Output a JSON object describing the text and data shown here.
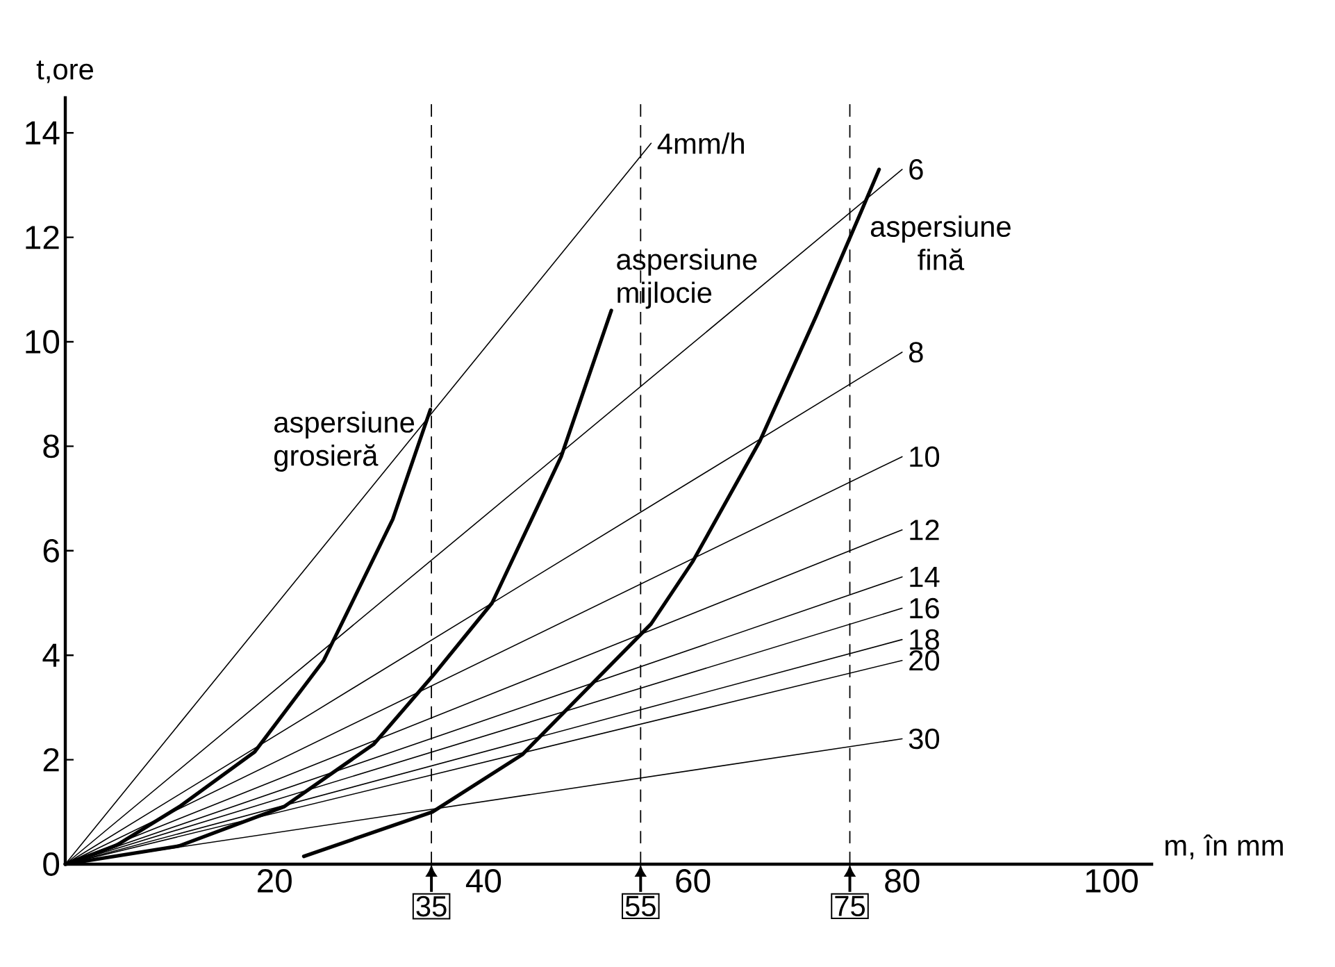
{
  "chart_data": {
    "type": "line",
    "xlabel": "m, în mm",
    "ylabel": "t,ore",
    "xlim": [
      0,
      104
    ],
    "ylim": [
      0,
      14.7
    ],
    "xticks": [
      20,
      40,
      60,
      80,
      100
    ],
    "yticks": [
      0,
      2,
      4,
      6,
      8,
      10,
      12,
      14
    ],
    "grid": false,
    "marker": "none",
    "line_style": "solid",
    "series": [
      {
        "name": "4mm/h",
        "color": "#000000",
        "x": [
          0,
          56
        ],
        "values": [
          0,
          13.8
        ]
      },
      {
        "name": "6",
        "color": "#000000",
        "x": [
          0,
          80
        ],
        "values": [
          0,
          13.3
        ]
      },
      {
        "name": "8",
        "color": "#000000",
        "x": [
          0,
          80
        ],
        "values": [
          0,
          9.8
        ]
      },
      {
        "name": "10",
        "color": "#000000",
        "x": [
          0,
          80
        ],
        "values": [
          0,
          7.8
        ]
      },
      {
        "name": "12",
        "color": "#000000",
        "x": [
          0,
          80
        ],
        "values": [
          0,
          6.4
        ]
      },
      {
        "name": "14",
        "color": "#000000",
        "x": [
          0,
          80
        ],
        "values": [
          0,
          5.5
        ]
      },
      {
        "name": "16",
        "color": "#000000",
        "x": [
          0,
          80
        ],
        "values": [
          0,
          4.9
        ]
      },
      {
        "name": "18",
        "color": "#000000",
        "x": [
          0,
          80
        ],
        "values": [
          0,
          4.3
        ]
      },
      {
        "name": "20",
        "color": "#000000",
        "x": [
          0,
          80
        ],
        "values": [
          0,
          3.9
        ]
      },
      {
        "name": "30",
        "color": "#000000",
        "x": [
          0,
          80
        ],
        "values": [
          0,
          2.4
        ]
      },
      {
        "name": "aspersiune grosieră",
        "color": "#000000",
        "x": [
          0,
          4.8,
          10.9,
          18.1,
          24.7,
          31.3,
          34.9
        ],
        "values": [
          0,
          0.35,
          1.1,
          2.15,
          3.9,
          6.6,
          8.7
        ]
      },
      {
        "name": "aspersiune mijlocie",
        "color": "#000000",
        "x": [
          0,
          10.9,
          20.9,
          29.5,
          35.1,
          40.8,
          47.4,
          52.2
        ],
        "values": [
          0,
          0.35,
          1.1,
          2.3,
          3.6,
          5.0,
          7.8,
          10.6
        ]
      },
      {
        "name": "aspersiune fină",
        "color": "#000000",
        "x": [
          22.8,
          35.1,
          43.7,
          56.0,
          60.0,
          66.4,
          71.8,
          76.1,
          77.8
        ],
        "values": [
          0.15,
          1.0,
          2.1,
          4.6,
          5.8,
          8.1,
          10.5,
          12.5,
          13.3
        ]
      }
    ],
    "ref_lines": [
      {
        "axis": "x",
        "value": 35,
        "label": "35",
        "line_style": "dashed"
      },
      {
        "axis": "x",
        "value": 55,
        "label": "55",
        "line_style": "dashed"
      },
      {
        "axis": "x",
        "value": 75,
        "label": "75",
        "line_style": "dashed"
      }
    ]
  }
}
